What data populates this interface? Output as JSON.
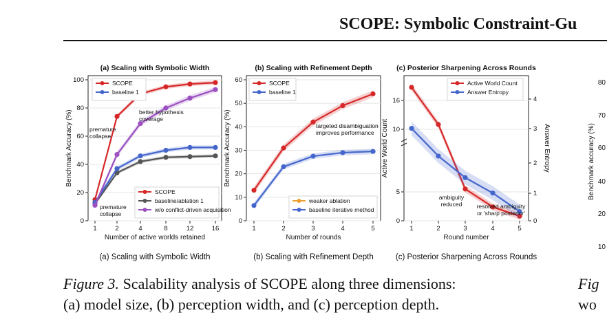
{
  "header": {
    "title": "SCOPE: Symbolic Constraint-Gu"
  },
  "caption": {
    "label": "Figure 3.",
    "text_line1": "Scalability analysis of SCOPE along three dimensions:",
    "text_line2": "(a) model size, (b) perception width, and (c) perception depth."
  },
  "right_figure": {
    "ylabel": "Benchmark accuracy (%)",
    "ticks": [
      "80",
      "70",
      "60",
      "40",
      "20",
      "10"
    ],
    "caption_line1": "Fig",
    "caption_line2": "wo"
  },
  "colors": {
    "red": "#d62728",
    "blue": "#4466cc",
    "gray": "#555555",
    "purple": "#9b4fc0",
    "orange": "#f0a030"
  },
  "chart_data": [
    {
      "type": "line",
      "title": "(a) Scaling with Symbolic Width",
      "subcaption": "(a) Scaling with Symbolic Width",
      "xlabel": "Number of active worlds retained",
      "ylabel": "Benchmark Accuracy (%)",
      "x": [
        "1",
        "2",
        "4",
        "8",
        "12",
        "16"
      ],
      "ylim": [
        0,
        100
      ],
      "yticks": [
        "0",
        "20",
        "40",
        "60",
        "80",
        "100"
      ],
      "grid": true,
      "legend_top": [
        "SCOPE",
        "baseline 1"
      ],
      "legend_bottom": [
        "SCOPE",
        "baseline/ablation 1",
        "w/o conflict-driven acquisition"
      ],
      "series": [
        {
          "name": "SCOPE",
          "color": "red",
          "values": [
            15,
            74,
            90,
            95,
            97,
            98
          ]
        },
        {
          "name": "baseline/ablation 1",
          "color": "gray",
          "values": [
            12,
            34,
            42,
            45,
            45.5,
            46
          ]
        },
        {
          "name": "baseline 1",
          "color": "blue",
          "values": [
            13,
            37,
            46,
            50,
            52,
            52
          ]
        },
        {
          "name": "w/o conflict-driven acquisition",
          "color": "purple",
          "values": [
            11,
            47,
            69,
            80,
            87,
            93
          ]
        }
      ],
      "annotations": [
        "premature",
        "collapse",
        "better hypothesis",
        "coverage",
        "premature",
        "collapse"
      ]
    },
    {
      "type": "line",
      "title": "(b) Scaling with Refinement Depth",
      "subcaption": "(b) Scaling with Refinement Depth",
      "xlabel": "Number of rounds",
      "ylabel": "Benchmark Accuracy (%)",
      "x": [
        "1",
        "2",
        "3",
        "4",
        "5"
      ],
      "ylim": [
        0,
        60
      ],
      "yticks": [
        "0",
        "10",
        "20",
        "30",
        "40",
        "50",
        "60"
      ],
      "grid": true,
      "legend_top": [
        "SCOPE",
        "baseline 1"
      ],
      "legend_bottom": [
        "weaker ablation",
        "baseline iterative method"
      ],
      "series": [
        {
          "name": "SCOPE",
          "color": "red",
          "values": [
            13,
            31,
            42,
            49,
            54
          ]
        },
        {
          "name": "baseline 1",
          "color": "blue",
          "values": [
            6.5,
            23,
            27.5,
            29,
            29.5
          ]
        }
      ],
      "annotations": [
        "targeted disambiguation",
        "improves performance"
      ]
    },
    {
      "type": "line",
      "title": "(c) Posterior Sharpening Across Rounds",
      "subcaption": "(c) Posterior Sharpening Across Rounds",
      "xlabel": "Round number",
      "ylabel": "Active World Count",
      "ylabel_right": "Answer Entropy",
      "x": [
        "1",
        "2",
        "3",
        "4",
        "5"
      ],
      "yticks": [
        "0",
        "5",
        "10",
        "16"
      ],
      "yticks_right": [
        "0",
        "1",
        "2",
        "3",
        "4"
      ],
      "grid": true,
      "legend_top": [
        "Active World Count",
        "Answer Entropy"
      ],
      "series": [
        {
          "name": "Active World Count",
          "color": "red",
          "values": [
            18,
            11,
            5.5,
            2.4,
            0.8
          ]
        },
        {
          "name": "Answer Entropy",
          "color": "blue",
          "values": [
            3.0,
            2.1,
            1.4,
            0.9,
            0.3
          ]
        }
      ],
      "annotations": [
        "ambiguity",
        "reduced",
        "resolved ambiguity",
        "or 'sharp posterior'"
      ]
    }
  ]
}
